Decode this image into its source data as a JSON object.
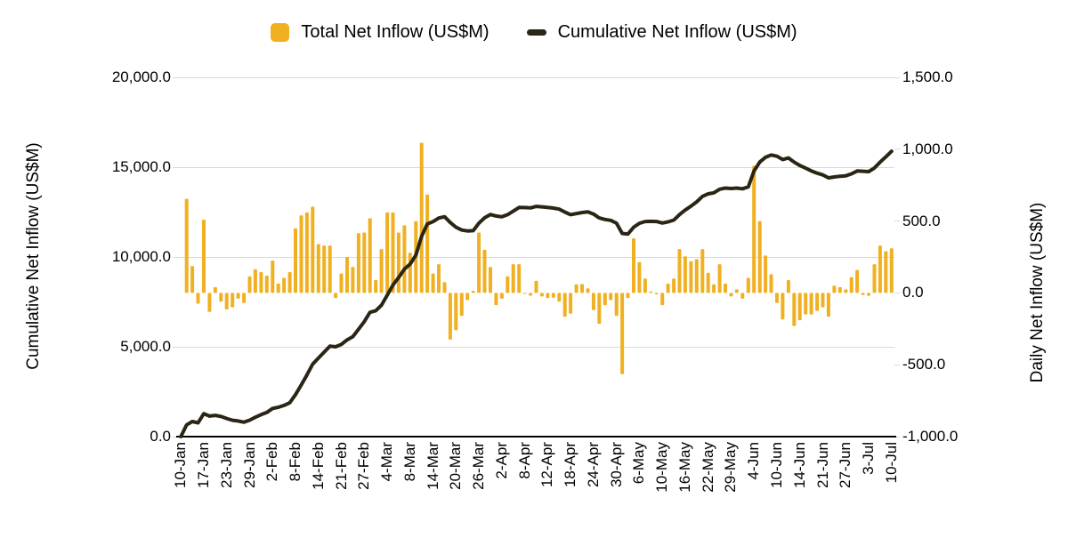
{
  "legend": {
    "items": [
      {
        "label": "Total Net Inflow (US$M)",
        "color": "#F0B022",
        "swatch": "square"
      },
      {
        "label": "Cumulative Net Inflow (US$M)",
        "color": "#2A2514",
        "swatch": "dash"
      }
    ]
  },
  "left_axis": {
    "title": "Cumulative Net Inflow (US$M)",
    "min": 0,
    "max": 20000,
    "tick_values": [
      0,
      5000,
      10000,
      15000,
      20000
    ],
    "tick_labels": [
      "0.0",
      "5,000.0",
      "10,000.0",
      "15,000.0",
      "20,000.0"
    ]
  },
  "right_axis": {
    "title": "Daily Net Inflow (US$M)",
    "min": -1000,
    "max": 1500,
    "tick_values": [
      -1000,
      -500,
      0,
      500,
      1000,
      1500
    ],
    "tick_labels": [
      "-1,000.0",
      "-500.0",
      "0.0",
      "500.0",
      "1,000.0",
      "1,500.0"
    ]
  },
  "x_axis": {
    "tick_every": 4,
    "tick_labels": [
      "10-Jan",
      "17-Jan",
      "23-Jan",
      "29-Jan",
      "2-Feb",
      "8-Feb",
      "14-Feb",
      "21-Feb",
      "27-Feb",
      "4-Mar",
      "8-Mar",
      "14-Mar",
      "20-Mar",
      "26-Mar",
      "2-Apr",
      "8-Apr",
      "12-Apr",
      "18-Apr",
      "24-Apr",
      "30-Apr",
      "6-May",
      "10-May",
      "16-May",
      "22-May",
      "29-May",
      "4-Jun",
      "10-Jun",
      "14-Jun",
      "21-Jun",
      "27-Jun",
      "3-Jul",
      "10-Jul"
    ]
  },
  "chart_data": {
    "type": "bar+line",
    "grid": "horizontal",
    "legend_position": "top",
    "x": [
      "10-Jan",
      "11-Jan",
      "12-Jan",
      "16-Jan",
      "17-Jan",
      "18-Jan",
      "19-Jan",
      "22-Jan",
      "23-Jan",
      "24-Jan",
      "25-Jan",
      "26-Jan",
      "29-Jan",
      "30-Jan",
      "31-Jan",
      "1-Feb",
      "2-Feb",
      "5-Feb",
      "6-Feb",
      "7-Feb",
      "8-Feb",
      "9-Feb",
      "12-Feb",
      "13-Feb",
      "14-Feb",
      "15-Feb",
      "16-Feb",
      "20-Feb",
      "21-Feb",
      "22-Feb",
      "23-Feb",
      "26-Feb",
      "27-Feb",
      "28-Feb",
      "29-Feb",
      "1-Mar",
      "4-Mar",
      "5-Mar",
      "6-Mar",
      "7-Mar",
      "8-Mar",
      "11-Mar",
      "12-Mar",
      "13-Mar",
      "14-Mar",
      "15-Mar",
      "18-Mar",
      "19-Mar",
      "20-Mar",
      "21-Mar",
      "22-Mar",
      "25-Mar",
      "26-Mar",
      "27-Mar",
      "28-Mar",
      "1-Apr",
      "2-Apr",
      "3-Apr",
      "4-Apr",
      "5-Apr",
      "8-Apr",
      "9-Apr",
      "10-Apr",
      "11-Apr",
      "12-Apr",
      "15-Apr",
      "16-Apr",
      "17-Apr",
      "18-Apr",
      "19-Apr",
      "22-Apr",
      "23-Apr",
      "24-Apr",
      "25-Apr",
      "26-Apr",
      "29-Apr",
      "30-Apr",
      "1-May",
      "2-May",
      "3-May",
      "6-May",
      "7-May",
      "8-May",
      "9-May",
      "10-May",
      "13-May",
      "14-May",
      "15-May",
      "16-May",
      "17-May",
      "20-May",
      "21-May",
      "22-May",
      "23-May",
      "24-May",
      "28-May",
      "29-May",
      "30-May",
      "31-May",
      "3-Jun",
      "4-Jun",
      "5-Jun",
      "6-Jun",
      "7-Jun",
      "10-Jun",
      "11-Jun",
      "12-Jun",
      "13-Jun",
      "14-Jun",
      "17-Jun",
      "18-Jun",
      "20-Jun",
      "21-Jun",
      "24-Jun",
      "25-Jun",
      "26-Jun",
      "27-Jun",
      "28-Jun",
      "1-Jul",
      "2-Jul",
      "3-Jul",
      "5-Jul",
      "8-Jul",
      "9-Jul",
      "10-Jul"
    ],
    "series": [
      {
        "name": "Total Net Inflow (US$M)",
        "type": "bar",
        "axis": "right",
        "color": "#F0B022",
        "values": [
          0,
          655,
          187,
          -75,
          510,
          -132,
          40,
          -60,
          -115,
          -100,
          -40,
          -70,
          115,
          165,
          145,
          120,
          225,
          65,
          105,
          145,
          450,
          540,
          560,
          600,
          340,
          330,
          330,
          -35,
          135,
          250,
          180,
          415,
          420,
          520,
          90,
          305,
          560,
          560,
          420,
          470,
          280,
          500,
          1045,
          685,
          135,
          200,
          75,
          -325,
          -260,
          -160,
          -50,
          15,
          420,
          300,
          180,
          -85,
          -40,
          115,
          200,
          200,
          -3,
          -19,
          85,
          -25,
          -35,
          -33,
          -60,
          -165,
          -145,
          60,
          62,
          32,
          -120,
          -215,
          -85,
          -50,
          -160,
          -565,
          -35,
          380,
          215,
          100,
          10,
          -10,
          -85,
          65,
          100,
          305,
          255,
          220,
          235,
          305,
          140,
          60,
          200,
          65,
          -25,
          25,
          -40,
          105,
          885,
          500,
          260,
          130,
          -70,
          -185,
          90,
          -230,
          -190,
          -150,
          -150,
          -125,
          -100,
          -165,
          50,
          40,
          25,
          110,
          160,
          -15,
          -20,
          200,
          330,
          290,
          310
        ]
      },
      {
        "name": "Cumulative Net Inflow (US$M)",
        "type": "line",
        "axis": "left",
        "color": "#2A2514",
        "derived": "running_sum_of_bar_series"
      }
    ]
  }
}
